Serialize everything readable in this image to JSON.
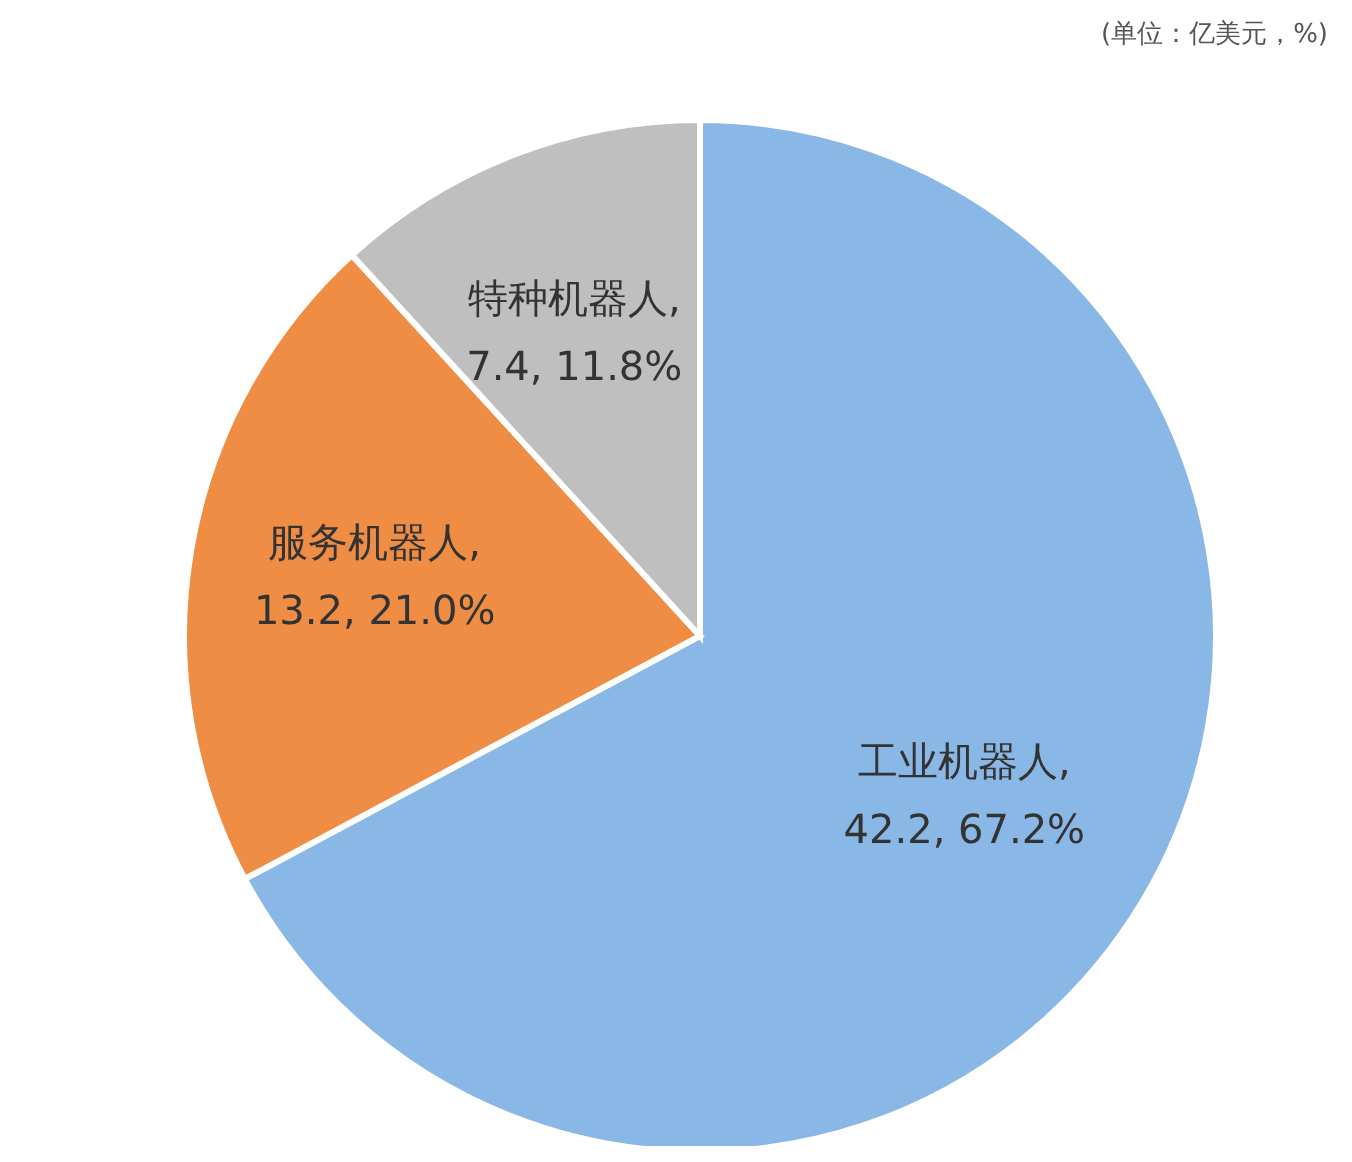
{
  "chart_data": {
    "type": "pie",
    "subtitle": "(单位：亿美元，%)",
    "categories": [
      "工业机器人",
      "服务机器人",
      "特种机器人"
    ],
    "values": [
      42.2,
      13.2,
      7.4
    ],
    "value_labels": [
      ", 42.2, 67.2%",
      ", 13.2, 21.0%",
      ", 7.4, 11.8%"
    ],
    "colors": [
      "#8ab8e6",
      "#ef8d45",
      "#bfbfbf"
    ],
    "legend": false
  }
}
